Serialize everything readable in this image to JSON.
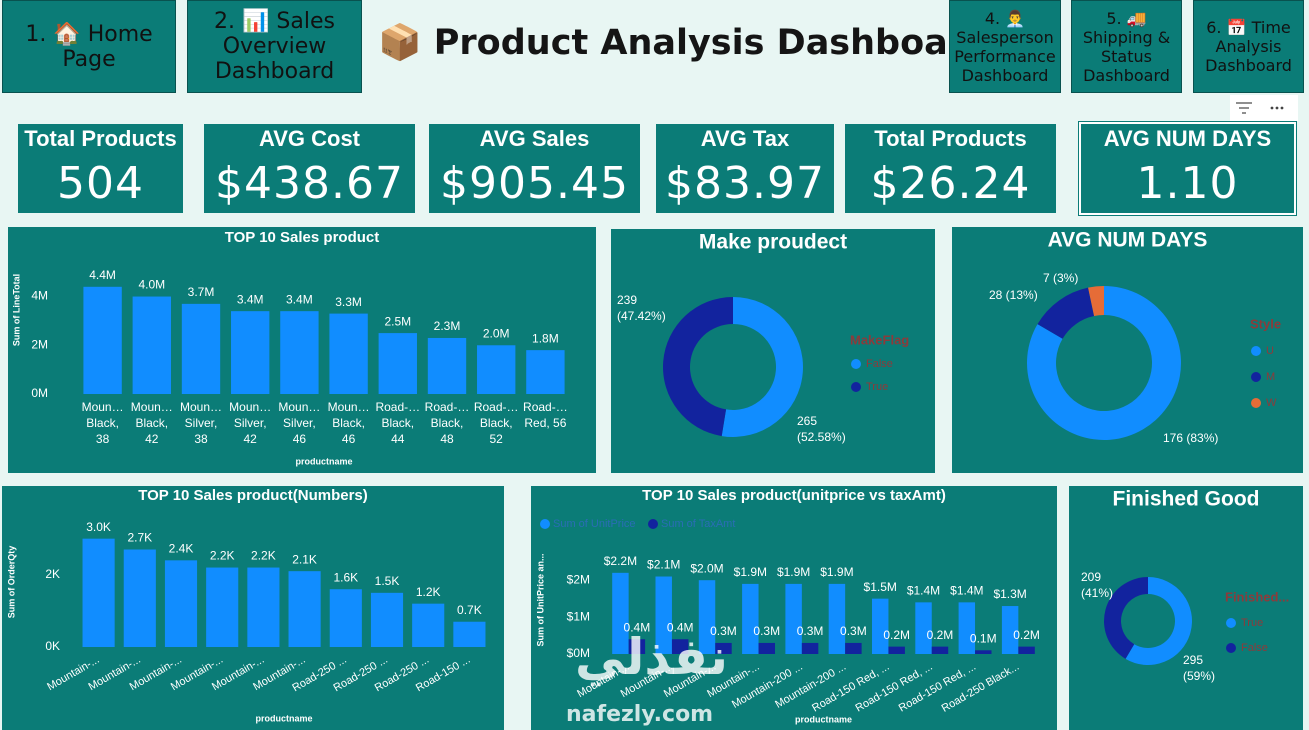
{
  "nav": [
    "1. 🏠 Home Page",
    "2. 📊 Sales Overview Dashboard",
    "4. 👨‍💼 Salesperson Performance Dashboard",
    "5. 🚚 Shipping & Status Dashboard",
    "6. 📅 Time Analysis Dashboard"
  ],
  "header": {
    "title": "📦 Product Analysis Dashboard"
  },
  "kpis": [
    {
      "label": "Total Products",
      "value": "504"
    },
    {
      "label": "AVG Cost",
      "value": "$438.67"
    },
    {
      "label": "AVG Sales",
      "value": "$905.45"
    },
    {
      "label": "AVG Tax",
      "value": "$83.97"
    },
    {
      "label": "Total Products",
      "value": "$26.24"
    },
    {
      "label": "AVG NUM DAYS",
      "value": "1.10"
    }
  ],
  "watermark": {
    "arabic": "نفذلي",
    "latin": "nafezly.com"
  },
  "chart_data": [
    {
      "type": "bar",
      "title": "TOP 10 Sales product",
      "y_label": "Sum of LineTotal",
      "x_label": "productname",
      "categories": [
        "Moun… Black, 38",
        "Moun… Black, 42",
        "Moun… Silver, 38",
        "Moun… Silver, 42",
        "Moun… Silver, 46",
        "Moun… Black, 46",
        "Road-… Black, 44",
        "Road-… Black, 48",
        "Road-… Black, 52",
        "Road-… Red, 56"
      ],
      "values": [
        4.4,
        4.0,
        3.7,
        3.4,
        3.4,
        3.3,
        2.5,
        2.3,
        2.0,
        1.8
      ],
      "value_labels": [
        "4.4M",
        "4.0M",
        "3.7M",
        "3.4M",
        "3.4M",
        "3.3M",
        "2.5M",
        "2.3M",
        "2.0M",
        "1.8M"
      ],
      "color": "#118dff",
      "ylim": [
        0,
        5.5
      ],
      "yticks": [
        {
          "value": 0,
          "label": "0M"
        },
        {
          "value": 2,
          "label": "2M"
        },
        {
          "value": 4,
          "label": "4M"
        }
      ]
    },
    {
      "type": "donut",
      "title": "Make proudect",
      "legend_title": "MakeFlag",
      "categories": [
        "False",
        "True"
      ],
      "values": [
        265,
        239
      ],
      "value_labels": [
        "265 (52.58%)",
        "239 (47.42%)"
      ],
      "colors": [
        "#118dff",
        "#12239e"
      ]
    },
    {
      "type": "donut",
      "title": "AVG NUM DAYS",
      "legend_title": "Style",
      "categories": [
        "U",
        "M",
        "W"
      ],
      "values": [
        176,
        28,
        7
      ],
      "value_labels": [
        "176 (83%)",
        "28 (13%)",
        "7 (3%)"
      ],
      "colors": [
        "#118dff",
        "#12239e",
        "#e66c37"
      ]
    },
    {
      "type": "bar",
      "title": "TOP 10 Sales product(Numbers)",
      "y_label": "Sum of OrderQty",
      "x_label": "productname",
      "categories": [
        "Mountain-...",
        "Mountain-...",
        "Mountain-...",
        "Mountain-...",
        "Mountain-...",
        "Mountain-...",
        "Road-250 ...",
        "Road-250 ...",
        "Road-250 ...",
        "Road-150 ..."
      ],
      "values": [
        3.0,
        2.7,
        2.4,
        2.2,
        2.2,
        2.1,
        1.6,
        1.5,
        1.2,
        0.7
      ],
      "value_labels": [
        "3.0K",
        "2.7K",
        "2.4K",
        "2.2K",
        "2.2K",
        "2.1K",
        "1.6K",
        "1.5K",
        "1.2K",
        "0.7K"
      ],
      "color": "#118dff",
      "ylim": [
        0,
        3.6
      ],
      "yticks": [
        {
          "value": 0,
          "label": "0K"
        },
        {
          "value": 2,
          "label": "2K"
        }
      ]
    },
    {
      "type": "bar",
      "title": "TOP 10 Sales product(unitprice vs taxAmt)",
      "y_label": "Sum of UnitPrice an...",
      "x_label": "productname",
      "categories": [
        "Mountain-...",
        "Mountain-...",
        "Mountain-...",
        "Mountain-...",
        "Mountain-200 ...",
        "Mountain-200 ...",
        "Road-150 Red, ...",
        "Road-150 Red, ...",
        "Road-150 Red, ...",
        "Road-250 Black..."
      ],
      "series": [
        {
          "name": "Sum of UnitPrice",
          "color": "#118dff",
          "values": [
            2.2,
            2.1,
            2.0,
            1.9,
            1.9,
            1.9,
            1.5,
            1.4,
            1.4,
            1.3
          ],
          "value_labels": [
            "$2.2M",
            "$2.1M",
            "$2.0M",
            "$1.9M",
            "$1.9M",
            "$1.9M",
            "$1.5M",
            "$1.4M",
            "$1.4M",
            "$1.3M"
          ]
        },
        {
          "name": "Sum of TaxAmt",
          "color": "#12239e",
          "values": [
            0.4,
            0.4,
            0.3,
            0.3,
            0.3,
            0.3,
            0.2,
            0.2,
            0.1,
            0.2
          ],
          "value_labels": [
            "0.4M",
            "0.4M",
            "0.3M",
            "0.3M",
            "0.3M",
            "0.3M",
            "0.2M",
            "0.2M",
            "0.1M",
            "0.2M"
          ]
        }
      ],
      "ylim": [
        0,
        2.9
      ],
      "yticks": [
        {
          "value": 0,
          "label": "$0M"
        },
        {
          "value": 1,
          "label": "$1M"
        },
        {
          "value": 2,
          "label": "$2M"
        }
      ]
    },
    {
      "type": "donut",
      "title": "Finished Good",
      "legend_title": "Finished...",
      "categories": [
        "True",
        "False"
      ],
      "values": [
        295,
        209
      ],
      "value_labels": [
        "295 (59%)",
        "209 (41%)"
      ],
      "colors": [
        "#118dff",
        "#12239e"
      ]
    }
  ]
}
